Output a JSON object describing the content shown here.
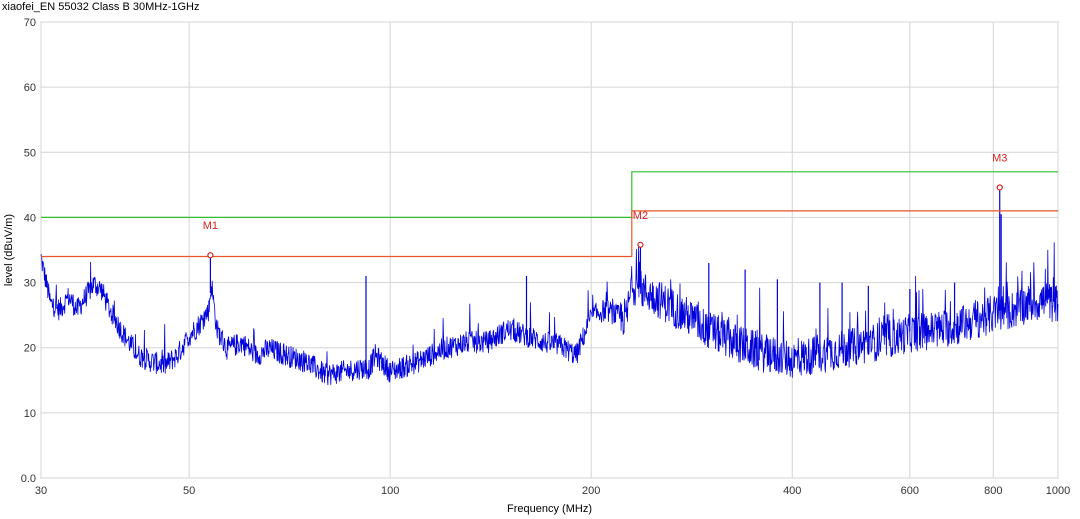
{
  "chart_data": {
    "type": "line",
    "title": "xiaofei_EN 55032 Class B 30MHz-1GHz",
    "xlabel": "Frequency (MHz)",
    "ylabel": "level (dBuV/m)",
    "x_scale": "log",
    "xlim": [
      30,
      1000
    ],
    "ylim": [
      0,
      70
    ],
    "x_ticks": [
      "30",
      "50",
      "100",
      "200",
      "400",
      "600",
      "800",
      "1000"
    ],
    "x_tick_values": [
      30,
      50,
      100,
      200,
      400,
      600,
      800,
      1000
    ],
    "y_ticks": [
      "0.0",
      "10",
      "20",
      "30",
      "40",
      "50",
      "60",
      "70"
    ],
    "y_tick_values": [
      0,
      10,
      20,
      30,
      40,
      50,
      60,
      70
    ],
    "grid": true,
    "series": [
      {
        "color": "#0000dd",
        "x": [
          30,
          31,
          32,
          33,
          34,
          35,
          36,
          37,
          38,
          39,
          40,
          42,
          44,
          46,
          48,
          50,
          52,
          53.5,
          54,
          55,
          57,
          60,
          63,
          66,
          70,
          75,
          80,
          85,
          90,
          93,
          95,
          100,
          110,
          120,
          130,
          140,
          150,
          160,
          170,
          180,
          190,
          200,
          210,
          220,
          226,
          230,
          240,
          250,
          260,
          280,
          300,
          330,
          360,
          400,
          450,
          500,
          550,
          600,
          650,
          700,
          750,
          800,
          850,
          900,
          950,
          1000
        ],
        "y": [
          34,
          27,
          26,
          28,
          26,
          28,
          30,
          29,
          26,
          24,
          22,
          19,
          18,
          17.5,
          19,
          22,
          24,
          26,
          30,
          23,
          20,
          21,
          19,
          20,
          19,
          18,
          16,
          16.5,
          17,
          17,
          19,
          16.5,
          18,
          20,
          21,
          21,
          23,
          22,
          21,
          20.5,
          19,
          25,
          26,
          25,
          25,
          30,
          29,
          28,
          27,
          25,
          23,
          21,
          19.5,
          18.5,
          19.5,
          20.5,
          21.5,
          22.5,
          23,
          23.5,
          24.5,
          25.5,
          26,
          27,
          27.5,
          27
        ]
      },
      {
        "name": "",
        "color": "#2fbf2f",
        "x": [
          30,
          230,
          230,
          1000
        ],
        "y": [
          40,
          40,
          47,
          47
        ]
      },
      {
        "name": "",
        "color": "#e8562a",
        "x": [
          30,
          230,
          230,
          1000
        ],
        "y": [
          34,
          34,
          41,
          41
        ]
      }
    ],
    "spikes": [
      {
        "x": 53.8,
        "y": 34.2
      },
      {
        "x": 92,
        "y": 31
      },
      {
        "x": 160,
        "y": 31
      },
      {
        "x": 237,
        "y": 36
      },
      {
        "x": 300,
        "y": 33
      },
      {
        "x": 340,
        "y": 32
      },
      {
        "x": 380,
        "y": 30.5
      },
      {
        "x": 440,
        "y": 30
      },
      {
        "x": 475,
        "y": 30
      },
      {
        "x": 520,
        "y": 29.5
      },
      {
        "x": 600,
        "y": 29
      },
      {
        "x": 700,
        "y": 30
      },
      {
        "x": 818,
        "y": 44.6
      },
      {
        "x": 822,
        "y": 40.5
      }
    ],
    "markers": [
      {
        "label": "M1",
        "x": 53.8,
        "y": 34.2
      },
      {
        "label": "M2",
        "x": 237,
        "y": 35.8
      },
      {
        "label": "M3",
        "x": 818,
        "y": 44.6
      }
    ],
    "marker_color": "#d92020"
  }
}
